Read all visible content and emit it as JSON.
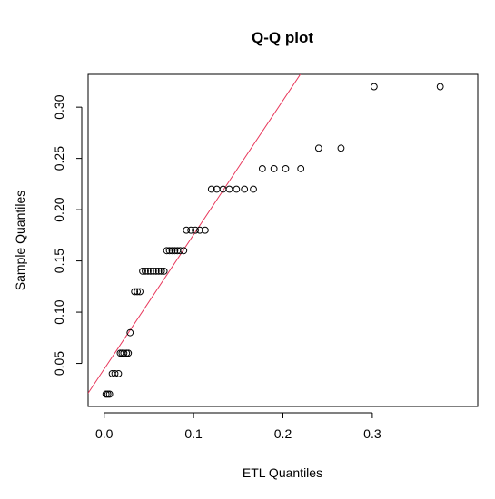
{
  "chart_data": {
    "type": "scatter",
    "title": "Q-Q plot",
    "xlabel": "ETL Quantiles",
    "ylabel": "Sample Quantiles",
    "xlim": [
      -0.018,
      0.418
    ],
    "ylim": [
      0.008,
      0.332
    ],
    "x_ticks": [
      "0.0",
      "0.1",
      "0.2",
      "0.3"
    ],
    "x_tick_values": [
      0.0,
      0.1,
      0.2,
      0.3
    ],
    "y_ticks": [
      "0.05",
      "0.10",
      "0.15",
      "0.20",
      "0.25",
      "0.30"
    ],
    "y_tick_values": [
      0.05,
      0.1,
      0.15,
      0.2,
      0.25,
      0.3
    ],
    "grid": false,
    "legend": "none",
    "point_color": "#000000",
    "line_color": "#e8365a",
    "reference_line": {
      "slope": 1.31,
      "intercept": 0.0445
    },
    "series": [
      {
        "marker": "open-circle",
        "x": [
          0.002,
          0.004,
          0.006,
          0.009,
          0.012,
          0.016,
          0.018,
          0.02,
          0.022,
          0.025,
          0.027,
          0.029,
          0.034,
          0.037,
          0.04,
          0.043,
          0.046,
          0.049,
          0.052,
          0.055,
          0.058,
          0.061,
          0.064,
          0.067,
          0.07,
          0.073,
          0.076,
          0.079,
          0.082,
          0.085,
          0.089,
          0.092,
          0.097,
          0.102,
          0.107,
          0.113,
          0.12,
          0.126,
          0.133,
          0.14,
          0.148,
          0.157,
          0.167,
          0.177,
          0.19,
          0.203,
          0.22,
          0.24,
          0.265,
          0.302,
          0.376
        ],
        "y": [
          0.02,
          0.02,
          0.02,
          0.04,
          0.04,
          0.04,
          0.06,
          0.06,
          0.06,
          0.06,
          0.06,
          0.08,
          0.12,
          0.12,
          0.12,
          0.14,
          0.14,
          0.14,
          0.14,
          0.14,
          0.14,
          0.14,
          0.14,
          0.14,
          0.16,
          0.16,
          0.16,
          0.16,
          0.16,
          0.16,
          0.16,
          0.18,
          0.18,
          0.18,
          0.18,
          0.18,
          0.22,
          0.22,
          0.22,
          0.22,
          0.22,
          0.22,
          0.22,
          0.24,
          0.24,
          0.24,
          0.24,
          0.26,
          0.26,
          0.32,
          0.32
        ]
      }
    ]
  }
}
